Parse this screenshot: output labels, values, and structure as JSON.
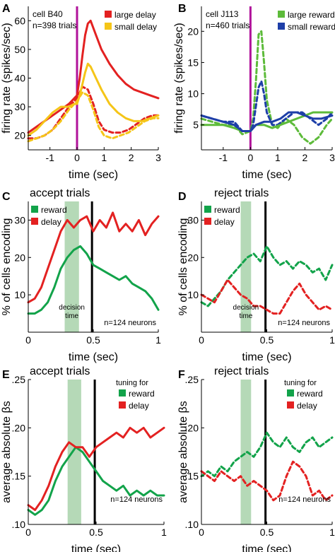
{
  "panels": [
    {
      "letter": "A",
      "annotations": [
        "cell B40",
        "n=398 trials"
      ],
      "xlabel": "time (sec)",
      "ylabel": "firing rate (spikes/sec)"
    },
    {
      "letter": "B",
      "annotations": [
        "cell J113",
        "n=460 trials"
      ],
      "xlabel": "time (sec)",
      "ylabel": "firing rate (spikes/sec)"
    },
    {
      "letter": "C",
      "subtitle": "accept trials",
      "annotations": [
        "decision",
        "time",
        "n=124 neurons"
      ],
      "xlabel": "time (sec)",
      "ylabel": "% of cells encoding"
    },
    {
      "letter": "D",
      "subtitle": "reject trials",
      "annotations": [
        "decision",
        "time",
        "n=124 neurons"
      ],
      "xlabel": "time (sec)",
      "ylabel": "% of cells encoding"
    },
    {
      "letter": "E",
      "subtitle": "accept trials",
      "annotations": [
        "tuning for",
        "n=124 neurons"
      ],
      "xlabel": "time (sec)",
      "ylabel": "average absolute βs"
    },
    {
      "letter": "F",
      "subtitle": "reject trials",
      "annotations": [
        "tuning for",
        "n=124 neurons"
      ],
      "xlabel": "time (sec)",
      "ylabel": "average absolute βs"
    }
  ],
  "chart_data": [
    {
      "type": "line",
      "panel": "A",
      "xlim": [
        -1.8,
        3
      ],
      "ylim": [
        15,
        65
      ],
      "xticks": [
        -1,
        0,
        1,
        2,
        3
      ],
      "xticklabels": [
        "-1",
        "0",
        "1",
        "2",
        "3"
      ],
      "yticks": [
        20,
        30,
        40,
        50,
        60
      ],
      "yticklabels": [
        "20",
        "30",
        "40",
        "50",
        "60"
      ],
      "vline": {
        "x": 0,
        "color": "#b0129a"
      },
      "decision_window": null,
      "legend_location": "top-right",
      "series": [
        {
          "name": "large delay",
          "color": "#e32121",
          "dash": false,
          "x": [
            -1.8,
            -1.5,
            -1.2,
            -0.9,
            -0.6,
            -0.3,
            -0.1,
            0,
            0.1,
            0.2,
            0.3,
            0.4,
            0.5,
            0.7,
            0.9,
            1.2,
            1.5,
            1.8,
            2.1,
            2.4,
            2.7,
            3.0
          ],
          "y": [
            21,
            23,
            25,
            27,
            29,
            31,
            33,
            34,
            40,
            48,
            55,
            59,
            60,
            55,
            50,
            45,
            41,
            38,
            36,
            35,
            34,
            33
          ]
        },
        {
          "name": "small delay",
          "color": "#f5c518",
          "dash": false,
          "x": [
            -1.8,
            -1.5,
            -1.2,
            -0.9,
            -0.6,
            -0.3,
            -0.1,
            0,
            0.1,
            0.2,
            0.3,
            0.4,
            0.5,
            0.7,
            0.9,
            1.2,
            1.5,
            1.8,
            2.1,
            2.4,
            2.7,
            3.0
          ],
          "y": [
            20,
            22,
            25,
            28,
            30,
            30,
            31,
            31,
            34,
            38,
            42,
            45,
            44,
            40,
            36,
            31,
            28,
            26,
            25,
            25,
            26,
            27
          ]
        },
        {
          "name": "",
          "color": "#e32121",
          "dash": true,
          "x": [
            -1.8,
            -1.5,
            -1.2,
            -0.9,
            -0.6,
            -0.3,
            0,
            0.2,
            0.4,
            0.6,
            0.8,
            1.0,
            1.3,
            1.6,
            1.9,
            2.2,
            2.5,
            2.8,
            3.0
          ],
          "y": [
            19,
            19,
            20,
            22,
            26,
            30,
            33,
            37,
            36,
            31,
            25,
            22,
            21,
            21,
            22,
            24,
            26,
            27,
            27
          ]
        },
        {
          "name": "",
          "color": "#f5c518",
          "dash": true,
          "x": [
            -1.8,
            -1.5,
            -1.2,
            -0.9,
            -0.6,
            -0.3,
            0,
            0.2,
            0.4,
            0.6,
            0.8,
            1.0,
            1.3,
            1.6,
            1.9,
            2.2,
            2.5,
            2.8,
            3.0
          ],
          "y": [
            18,
            19,
            20,
            22,
            25,
            29,
            32,
            35,
            34,
            29,
            23,
            20,
            19,
            20,
            21,
            23,
            25,
            26,
            26
          ]
        }
      ]
    },
    {
      "type": "line",
      "panel": "B",
      "xlim": [
        -1.8,
        3
      ],
      "ylim": [
        1,
        24
      ],
      "xticks": [
        -1,
        0,
        1,
        2,
        3
      ],
      "xticklabels": [
        "-1",
        "0",
        "1",
        "2",
        "3"
      ],
      "yticks": [
        5,
        10,
        15,
        20
      ],
      "yticklabels": [
        "5",
        "10",
        "15",
        "20"
      ],
      "vline": {
        "x": 0,
        "color": "#b0129a"
      },
      "decision_window": null,
      "legend_location": "top-right",
      "series": [
        {
          "name": "large reward",
          "color": "#5dbb3a",
          "dash": true,
          "x": [
            -1.8,
            -1.4,
            -1.0,
            -0.6,
            -0.3,
            0,
            0.1,
            0.2,
            0.3,
            0.4,
            0.5,
            0.6,
            0.8,
            1.0,
            1.3,
            1.6,
            1.9,
            2.2,
            2.5,
            2.8,
            3.0
          ],
          "y": [
            6,
            5.5,
            5,
            5,
            3.5,
            4,
            6,
            12,
            19.5,
            20,
            15,
            9,
            5,
            4.5,
            6,
            5,
            3,
            2,
            3,
            5,
            6
          ]
        },
        {
          "name": "small reward",
          "color": "#1e3fa8",
          "dash": true,
          "x": [
            -1.8,
            -1.4,
            -1.0,
            -0.6,
            -0.3,
            0,
            0.1,
            0.2,
            0.3,
            0.4,
            0.5,
            0.6,
            0.8,
            1.0,
            1.3,
            1.6,
            1.9,
            2.2,
            2.5,
            2.8,
            3.0
          ],
          "y": [
            6.5,
            6,
            5.5,
            5.5,
            4,
            4,
            5,
            8,
            11,
            12,
            10,
            7,
            5,
            5,
            6,
            7,
            7,
            6,
            5,
            6,
            7
          ]
        },
        {
          "name": "",
          "color": "#5dbb3a",
          "dash": false,
          "x": [
            -1.8,
            -1.4,
            -1.0,
            -0.6,
            -0.3,
            0,
            0.2,
            0.5,
            0.8,
            1.1,
            1.4,
            1.7,
            2.0,
            2.3,
            2.6,
            3.0
          ],
          "y": [
            5,
            5,
            5,
            4.5,
            4,
            4,
            5,
            5,
            4.5,
            5,
            5.5,
            6,
            6.5,
            7,
            7,
            7
          ]
        },
        {
          "name": "",
          "color": "#1e3fa8",
          "dash": false,
          "x": [
            -1.8,
            -1.4,
            -1.0,
            -0.6,
            -0.3,
            0,
            0.2,
            0.5,
            0.8,
            1.1,
            1.4,
            1.7,
            2.0,
            2.3,
            2.6,
            3.0
          ],
          "y": [
            6.5,
            6,
            5.5,
            5,
            4,
            4,
            5,
            5.5,
            5.5,
            6,
            7,
            7,
            6.5,
            6,
            6,
            6.5
          ]
        }
      ]
    },
    {
      "type": "line",
      "panel": "C",
      "xlim": [
        0,
        1
      ],
      "ylim": [
        0,
        35
      ],
      "xticks": [
        0,
        0.5,
        1
      ],
      "xticklabels": [
        "0",
        "0.5",
        "1"
      ],
      "yticks": [
        10,
        20,
        30
      ],
      "yticklabels": [
        "10",
        "20",
        "30"
      ],
      "vline": {
        "x": 0.49,
        "color": "#000000"
      },
      "decision_window": [
        0.28,
        0.39
      ],
      "legend_location": "top-left",
      "series": [
        {
          "name": "reward",
          "color": "#12a34a",
          "dash": false,
          "x": [
            0,
            0.05,
            0.1,
            0.15,
            0.2,
            0.25,
            0.3,
            0.35,
            0.4,
            0.45,
            0.5,
            0.55,
            0.6,
            0.65,
            0.7,
            0.75,
            0.8,
            0.85,
            0.9,
            0.95,
            1.0
          ],
          "y": [
            5,
            5,
            6,
            8,
            12,
            17,
            20,
            22,
            23,
            21,
            18,
            17,
            16,
            15,
            14,
            15,
            13,
            12,
            11,
            9,
            6
          ]
        },
        {
          "name": "delay",
          "color": "#e32121",
          "dash": false,
          "x": [
            0,
            0.05,
            0.1,
            0.15,
            0.2,
            0.25,
            0.3,
            0.35,
            0.4,
            0.45,
            0.5,
            0.55,
            0.6,
            0.65,
            0.7,
            0.75,
            0.8,
            0.85,
            0.9,
            0.95,
            1.0
          ],
          "y": [
            8,
            9,
            12,
            17,
            22,
            27,
            30,
            28,
            30,
            31,
            27,
            30,
            28,
            32,
            27,
            29,
            27,
            30,
            26,
            29,
            31
          ]
        }
      ]
    },
    {
      "type": "line",
      "panel": "D",
      "xlim": [
        0,
        1
      ],
      "ylim": [
        0,
        35
      ],
      "xticks": [
        0,
        0.5,
        1
      ],
      "xticklabels": [
        "0",
        "0.5",
        "1"
      ],
      "yticks": [
        10,
        20,
        30
      ],
      "yticklabels": [
        "10",
        "20",
        "30"
      ],
      "vline": {
        "x": 0.49,
        "color": "#000000"
      },
      "decision_window": [
        0.3,
        0.38
      ],
      "legend_location": "top-left",
      "series": [
        {
          "name": "reward",
          "color": "#12a34a",
          "dash": true,
          "x": [
            0,
            0.05,
            0.1,
            0.15,
            0.2,
            0.25,
            0.3,
            0.35,
            0.4,
            0.45,
            0.5,
            0.55,
            0.6,
            0.65,
            0.7,
            0.75,
            0.8,
            0.85,
            0.9,
            0.95,
            1.0
          ],
          "y": [
            8,
            7,
            9,
            11,
            14,
            16,
            18,
            20,
            21,
            19,
            23,
            20,
            18,
            19,
            17,
            19,
            18,
            16,
            17,
            14,
            18
          ]
        },
        {
          "name": "delay",
          "color": "#e32121",
          "dash": true,
          "x": [
            0,
            0.05,
            0.1,
            0.15,
            0.2,
            0.25,
            0.3,
            0.35,
            0.4,
            0.45,
            0.5,
            0.55,
            0.6,
            0.65,
            0.7,
            0.75,
            0.8,
            0.85,
            0.9,
            0.95,
            1.0
          ],
          "y": [
            10,
            9,
            8,
            11,
            14,
            12,
            10,
            9,
            7,
            7,
            6,
            5,
            5,
            8,
            11,
            13,
            10,
            8,
            6,
            7,
            6
          ]
        }
      ]
    },
    {
      "type": "line",
      "panel": "E",
      "xlim": [
        0,
        1
      ],
      "ylim": [
        0.1,
        0.25
      ],
      "xticks": [
        0,
        0.5,
        1
      ],
      "xticklabels": [
        "0",
        "0.5",
        "1"
      ],
      "yticks": [
        0.1,
        0.15,
        0.2,
        0.25
      ],
      "yticklabels": [
        ".10",
        ".15",
        ".20",
        ".25"
      ],
      "vline": {
        "x": 0.49,
        "color": "#000000"
      },
      "decision_window": [
        0.29,
        0.39
      ],
      "legend_location": "top-right",
      "series": [
        {
          "name": "reward",
          "color": "#12a34a",
          "dash": false,
          "x": [
            0,
            0.05,
            0.1,
            0.15,
            0.2,
            0.25,
            0.3,
            0.35,
            0.4,
            0.45,
            0.5,
            0.55,
            0.6,
            0.65,
            0.7,
            0.75,
            0.8,
            0.85,
            0.9,
            0.95,
            1.0
          ],
          "y": [
            0.115,
            0.11,
            0.115,
            0.125,
            0.145,
            0.16,
            0.17,
            0.18,
            0.175,
            0.165,
            0.155,
            0.145,
            0.14,
            0.135,
            0.14,
            0.13,
            0.135,
            0.13,
            0.135,
            0.13,
            0.13
          ]
        },
        {
          "name": "delay",
          "color": "#e32121",
          "dash": false,
          "x": [
            0,
            0.05,
            0.1,
            0.15,
            0.2,
            0.25,
            0.3,
            0.35,
            0.4,
            0.45,
            0.5,
            0.55,
            0.6,
            0.65,
            0.7,
            0.75,
            0.8,
            0.85,
            0.9,
            0.95,
            1.0
          ],
          "y": [
            0.12,
            0.115,
            0.125,
            0.14,
            0.16,
            0.175,
            0.185,
            0.18,
            0.18,
            0.17,
            0.18,
            0.185,
            0.19,
            0.195,
            0.19,
            0.2,
            0.195,
            0.2,
            0.19,
            0.195,
            0.2
          ]
        }
      ]
    },
    {
      "type": "line",
      "panel": "F",
      "xlim": [
        0,
        1
      ],
      "ylim": [
        0.1,
        0.25
      ],
      "xticks": [
        0,
        0.5,
        1
      ],
      "xticklabels": [
        "0",
        "0.5",
        "1"
      ],
      "yticks": [
        0.1,
        0.15,
        0.2,
        0.25
      ],
      "yticklabels": [
        ".10",
        ".15",
        ".20",
        ".25"
      ],
      "vline": {
        "x": 0.49,
        "color": "#000000"
      },
      "decision_window": [
        0.3,
        0.38
      ],
      "legend_location": "top-right",
      "series": [
        {
          "name": "reward",
          "color": "#12a34a",
          "dash": true,
          "x": [
            0,
            0.05,
            0.1,
            0.15,
            0.2,
            0.25,
            0.3,
            0.35,
            0.4,
            0.45,
            0.5,
            0.55,
            0.6,
            0.65,
            0.7,
            0.75,
            0.8,
            0.85,
            0.9,
            0.95,
            1.0
          ],
          "y": [
            0.15,
            0.155,
            0.15,
            0.16,
            0.155,
            0.165,
            0.17,
            0.175,
            0.17,
            0.18,
            0.195,
            0.185,
            0.18,
            0.19,
            0.18,
            0.175,
            0.185,
            0.19,
            0.18,
            0.185,
            0.19
          ]
        },
        {
          "name": "delay",
          "color": "#e32121",
          "dash": true,
          "x": [
            0,
            0.05,
            0.1,
            0.15,
            0.2,
            0.25,
            0.3,
            0.35,
            0.4,
            0.45,
            0.5,
            0.55,
            0.6,
            0.65,
            0.7,
            0.75,
            0.8,
            0.85,
            0.9,
            0.95,
            1.0
          ],
          "y": [
            0.155,
            0.15,
            0.145,
            0.155,
            0.15,
            0.145,
            0.15,
            0.14,
            0.145,
            0.14,
            0.135,
            0.125,
            0.13,
            0.15,
            0.165,
            0.16,
            0.15,
            0.13,
            0.135,
            0.125,
            0.13
          ]
        }
      ]
    }
  ]
}
